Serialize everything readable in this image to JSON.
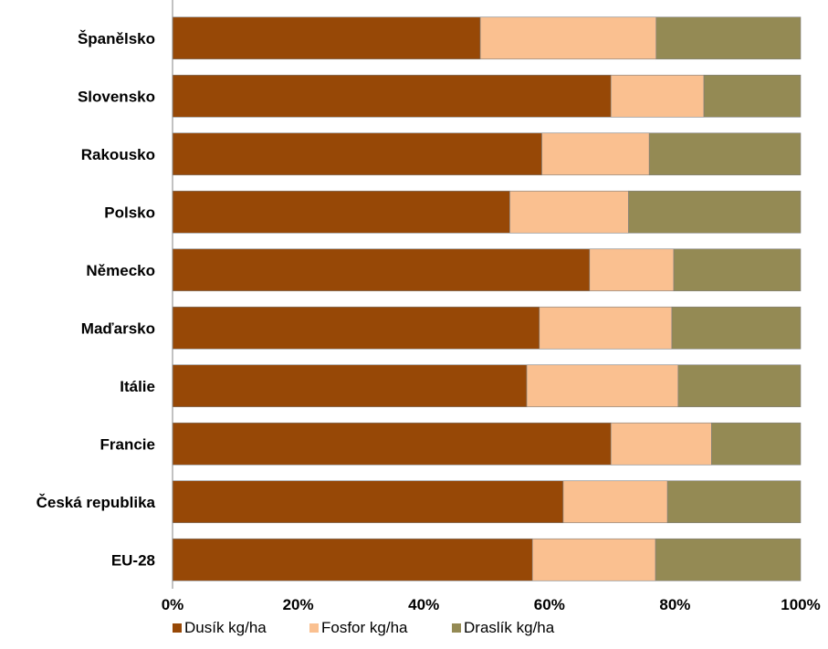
{
  "chart_data": {
    "type": "bar",
    "orientation": "horizontal",
    "stacked": "percent",
    "categories": [
      "Španělsko",
      "Slovensko",
      "Rakousko",
      "Polsko",
      "Německo",
      "Maďarsko",
      "Itálie",
      "Francie",
      "Česká republika",
      "EU-28"
    ],
    "series": [
      {
        "name": "Dusík kg/ha",
        "color": "#974806",
        "values": [
          49,
          69.8,
          58.8,
          53.7,
          66.4,
          58.4,
          56.4,
          69.8,
          62.2,
          57.3
        ]
      },
      {
        "name": "Fosfor kg/ha",
        "color": "#FAC090",
        "values": [
          28,
          14.8,
          17.1,
          18.9,
          13.4,
          21.1,
          24.1,
          16,
          16.6,
          19.6
        ]
      },
      {
        "name": "Draslík kg/ha",
        "color": "#948A54",
        "values": [
          23,
          15.4,
          24.1,
          27.4,
          20.2,
          20.5,
          19.5,
          14.2,
          21.2,
          23.1
        ]
      }
    ],
    "xlim": [
      0,
      100
    ],
    "ticks": [
      "0%",
      "20%",
      "40%",
      "60%",
      "80%",
      "100%"
    ],
    "grid": false,
    "legend_position": "bottom",
    "title": "",
    "xlabel": "",
    "ylabel": ""
  }
}
